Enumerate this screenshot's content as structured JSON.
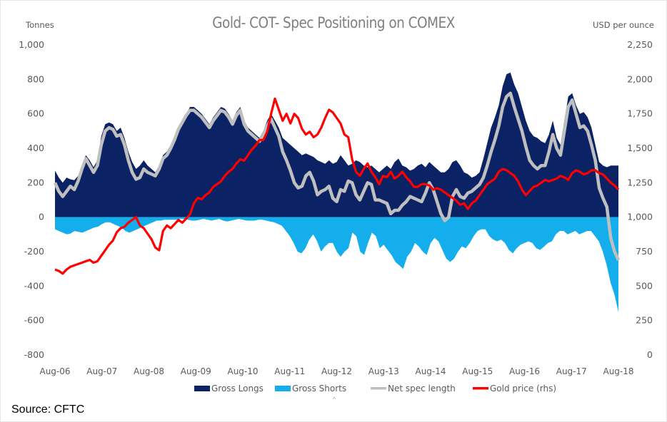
{
  "chart_data": {
    "type": "area",
    "title": "Gold- COT- Spec Positioning on COMEX",
    "ylabel_left": "Tonnes",
    "ylabel_right": "USD per ounce",
    "ylim_left": [
      -800,
      1000
    ],
    "ylim_right": [
      0,
      2250
    ],
    "yticks_left": [
      "1,000",
      "800",
      "600",
      "400",
      "200",
      "0",
      "-200",
      "-400",
      "-600",
      "-800"
    ],
    "yticks_left_values": [
      1000,
      800,
      600,
      400,
      200,
      0,
      -200,
      -400,
      -600,
      -800
    ],
    "yticks_right": [
      "2,250",
      "2,000",
      "1,750",
      "1,500",
      "1,250",
      "1,000",
      "750",
      "500",
      "250",
      "0"
    ],
    "yticks_right_values": [
      2250,
      2000,
      1750,
      1500,
      1250,
      1000,
      750,
      500,
      250,
      0
    ],
    "xticks": [
      "Aug-06",
      "Aug-07",
      "Aug-08",
      "Aug-09",
      "Aug-10",
      "Aug-11",
      "Aug-12",
      "Aug-13",
      "Aug-14",
      "Aug-15",
      "Aug-16",
      "Aug-17",
      "Aug-18"
    ],
    "x_start": "Aug-06",
    "x_end": "Aug-18",
    "x_frequency": "monthly",
    "legend_position": "bottom",
    "grid": false,
    "series": [
      {
        "name": "Gross Longs",
        "kind": "area",
        "axis": "left",
        "color": "#0b2265",
        "values": [
          270,
          230,
          200,
          230,
          220,
          215,
          240,
          300,
          360,
          330,
          290,
          330,
          470,
          540,
          550,
          540,
          500,
          520,
          460,
          380,
          320,
          280,
          300,
          330,
          300,
          280,
          260,
          300,
          360,
          380,
          420,
          470,
          520,
          560,
          600,
          640,
          640,
          620,
          600,
          570,
          540,
          580,
          610,
          640,
          630,
          600,
          560,
          610,
          640,
          560,
          520,
          500,
          480,
          460,
          500,
          560,
          600,
          560,
          520,
          460,
          440,
          420,
          400,
          380,
          360,
          370,
          360,
          350,
          330,
          320,
          310,
          330,
          310,
          320,
          360,
          330,
          300,
          310,
          330,
          320,
          300,
          290,
          300,
          280,
          260,
          280,
          300,
          280,
          320,
          340,
          300,
          290,
          270,
          280,
          300,
          310,
          290,
          320,
          300,
          280,
          260,
          260,
          280,
          320,
          330,
          300,
          260,
          250,
          230,
          240,
          260,
          340,
          430,
          520,
          580,
          650,
          760,
          830,
          840,
          770,
          720,
          640,
          560,
          500,
          470,
          460,
          440,
          430,
          480,
          560,
          460,
          420,
          560,
          700,
          720,
          650,
          600,
          610,
          580,
          520,
          420,
          320,
          300,
          290,
          300,
          300,
          300
        ]
      },
      {
        "name": "Gross Shorts",
        "kind": "area",
        "axis": "left",
        "color": "#13aeeb",
        "values": [
          -70,
          -80,
          -90,
          -100,
          -95,
          -80,
          -85,
          -90,
          -80,
          -70,
          -60,
          -55,
          -40,
          -30,
          -30,
          -40,
          -50,
          -60,
          -80,
          -90,
          -80,
          -70,
          -60,
          -50,
          -40,
          -30,
          -20,
          -20,
          -15,
          -15,
          -15,
          -15,
          -10,
          -10,
          -15,
          -20,
          -20,
          -15,
          -10,
          -15,
          -20,
          -15,
          -10,
          -20,
          -25,
          -20,
          -15,
          -10,
          -15,
          -20,
          -20,
          -20,
          -15,
          -15,
          -20,
          -25,
          -30,
          -40,
          -50,
          -80,
          -110,
          -150,
          -200,
          -210,
          -180,
          -130,
          -100,
          -140,
          -200,
          -170,
          -150,
          -150,
          -200,
          -230,
          -200,
          -180,
          -90,
          -110,
          -200,
          -220,
          -150,
          -90,
          -110,
          -180,
          -160,
          -190,
          -220,
          -260,
          -280,
          -300,
          -230,
          -200,
          -150,
          -170,
          -200,
          -220,
          -150,
          -120,
          -140,
          -190,
          -240,
          -260,
          -240,
          -200,
          -170,
          -180,
          -150,
          -110,
          -80,
          -70,
          -70,
          -110,
          -130,
          -140,
          -130,
          -150,
          -190,
          -210,
          -180,
          -160,
          -150,
          -140,
          -150,
          -180,
          -190,
          -170,
          -150,
          -140,
          -100,
          -80,
          -80,
          -100,
          -90,
          -80,
          -100,
          -90,
          -80,
          -80,
          -110,
          -140,
          -200,
          -280,
          -380,
          -450,
          -550
        ]
      },
      {
        "name": "Net spec length",
        "kind": "line",
        "axis": "left",
        "color": "#bfbfbf",
        "values": [
          200,
          150,
          120,
          150,
          180,
          160,
          210,
          280,
          340,
          300,
          260,
          300,
          420,
          500,
          520,
          510,
          470,
          480,
          420,
          330,
          260,
          220,
          230,
          280,
          260,
          250,
          240,
          280,
          340,
          360,
          400,
          450,
          510,
          550,
          590,
          620,
          620,
          600,
          580,
          550,
          520,
          560,
          590,
          620,
          610,
          580,
          540,
          590,
          620,
          540,
          500,
          480,
          460,
          440,
          480,
          530,
          570,
          520,
          470,
          380,
          330,
          270,
          200,
          170,
          180,
          240,
          260,
          210,
          130,
          150,
          160,
          180,
          110,
          90,
          160,
          150,
          210,
          200,
          130,
          100,
          150,
          200,
          190,
          100,
          100,
          90,
          80,
          20,
          40,
          40,
          70,
          90,
          120,
          110,
          100,
          90,
          140,
          200,
          160,
          90,
          20,
          -20,
          0,
          120,
          160,
          120,
          110,
          140,
          150,
          170,
          190,
          230,
          300,
          380,
          450,
          530,
          640,
          700,
          720,
          640,
          570,
          500,
          410,
          330,
          300,
          280,
          300,
          300,
          380,
          480,
          400,
          360,
          500,
          640,
          680,
          600,
          520,
          530,
          500,
          420,
          330,
          170,
          110,
          60,
          -120,
          -200,
          -250
        ]
      },
      {
        "name": "Gold price (rhs)",
        "kind": "line",
        "axis": "right",
        "color": "#ff0000",
        "values": [
          620,
          610,
          590,
          620,
          640,
          650,
          660,
          670,
          680,
          690,
          670,
          680,
          720,
          760,
          800,
          830,
          890,
          920,
          930,
          960,
          980,
          1000,
          940,
          920,
          880,
          840,
          780,
          760,
          900,
          940,
          920,
          950,
          980,
          960,
          990,
          1020,
          1100,
          1140,
          1130,
          1160,
          1180,
          1220,
          1240,
          1260,
          1300,
          1330,
          1350,
          1390,
          1420,
          1410,
          1450,
          1490,
          1520,
          1560,
          1560,
          1620,
          1750,
          1860,
          1780,
          1700,
          1750,
          1680,
          1750,
          1720,
          1640,
          1600,
          1620,
          1580,
          1600,
          1650,
          1720,
          1780,
          1760,
          1720,
          1680,
          1600,
          1580,
          1420,
          1330,
          1300,
          1350,
          1390,
          1330,
          1290,
          1240,
          1300,
          1290,
          1330,
          1280,
          1300,
          1330,
          1290,
          1260,
          1220,
          1220,
          1240,
          1240,
          1230,
          1200,
          1210,
          1200,
          1180,
          1160,
          1140,
          1120,
          1090,
          1100,
          1060,
          1100,
          1120,
          1160,
          1200,
          1240,
          1260,
          1280,
          1330,
          1350,
          1340,
          1320,
          1300,
          1260,
          1200,
          1160,
          1190,
          1220,
          1230,
          1250,
          1270,
          1260,
          1270,
          1280,
          1300,
          1290,
          1270,
          1320,
          1340,
          1330,
          1310,
          1320,
          1340,
          1340,
          1320,
          1310,
          1280,
          1250,
          1230,
          1200
        ]
      }
    ]
  },
  "legend": {
    "items": [
      {
        "label": "Gross Longs",
        "color": "#0b2265",
        "swatch": "box"
      },
      {
        "label": "Gross Shorts",
        "color": "#13aeeb",
        "swatch": "box"
      },
      {
        "label": "Net spec length",
        "color": "#bfbfbf",
        "swatch": "line"
      },
      {
        "label": "Gold price (rhs)",
        "color": "#ff0000",
        "swatch": "line"
      }
    ]
  },
  "footer": {
    "source": "Source: CFTC",
    "caret": "^"
  }
}
